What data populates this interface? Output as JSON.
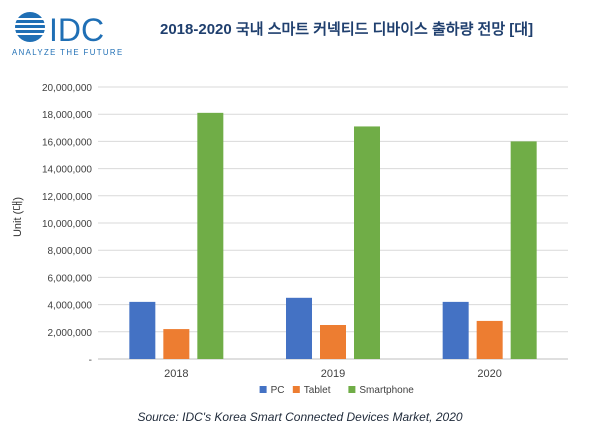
{
  "brand": {
    "logo_text": "IDC",
    "tagline": "ANALYZE THE FUTURE",
    "color": "#1f6fb5"
  },
  "chart_data": {
    "type": "bar",
    "title": "2018-2020 국내 스마트 커넥티드 디바이스 출하량 전망 [대]",
    "ylabel": "Unit (대)",
    "xlabel": "",
    "categories": [
      "2018",
      "2019",
      "2020"
    ],
    "ylim": [
      0,
      20000000
    ],
    "yticks": [
      {
        "value": 0,
        "label": "-"
      },
      {
        "value": 2000000,
        "label": "2,000,000"
      },
      {
        "value": 4000000,
        "label": "4,000,000"
      },
      {
        "value": 6000000,
        "label": "6,000,000"
      },
      {
        "value": 8000000,
        "label": "8,000,000"
      },
      {
        "value": 10000000,
        "label": "10,000,000"
      },
      {
        "value": 12000000,
        "label": "12,000,000"
      },
      {
        "value": 14000000,
        "label": "14,000,000"
      },
      {
        "value": 16000000,
        "label": "16,000,000"
      },
      {
        "value": 18000000,
        "label": "18,000,000"
      },
      {
        "value": 20000000,
        "label": "20,000,000"
      }
    ],
    "series": [
      {
        "name": "PC",
        "color": "#4472c4",
        "values": [
          4200000,
          4500000,
          4200000
        ]
      },
      {
        "name": "Tablet",
        "color": "#ed7d31",
        "values": [
          2200000,
          2500000,
          2800000
        ]
      },
      {
        "name": "Smartphone",
        "color": "#70ad47",
        "values": [
          18100000,
          17100000,
          16000000
        ]
      }
    ],
    "grid": true,
    "legend_position": "bottom"
  },
  "source": "Source: IDC's Korea Smart Connected Devices Market, 2020"
}
